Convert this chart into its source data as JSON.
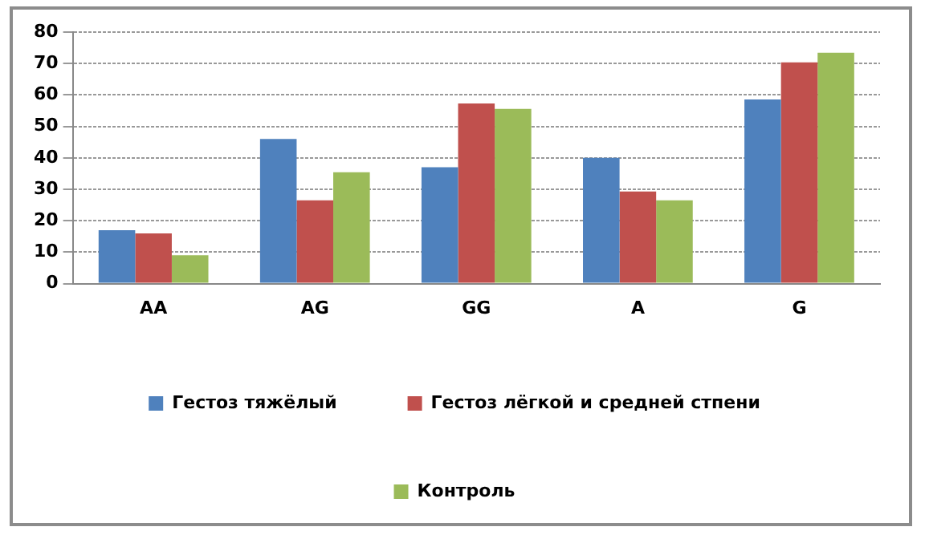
{
  "chart_data": {
    "type": "bar",
    "categories": [
      "AA",
      "AG",
      "GG",
      "A",
      "G"
    ],
    "series": [
      {
        "name": "Гестоз тяжёлый",
        "color": "#4f81bd",
        "values": [
          17,
          46,
          37,
          40,
          58.6
        ]
      },
      {
        "name": "Гестоз лёгкой и средней стпени",
        "color": "#c0504d",
        "values": [
          16,
          26.5,
          57.3,
          29.3,
          70.4
        ]
      },
      {
        "name": "Контроль",
        "color": "#9bbb59",
        "values": [
          9,
          35.4,
          55.6,
          26.5,
          73.4
        ]
      }
    ],
    "ylim": [
      0,
      80
    ],
    "yticks": [
      0,
      10,
      20,
      30,
      40,
      50,
      60,
      70,
      80
    ],
    "grid": "y",
    "legend": "bottom"
  }
}
